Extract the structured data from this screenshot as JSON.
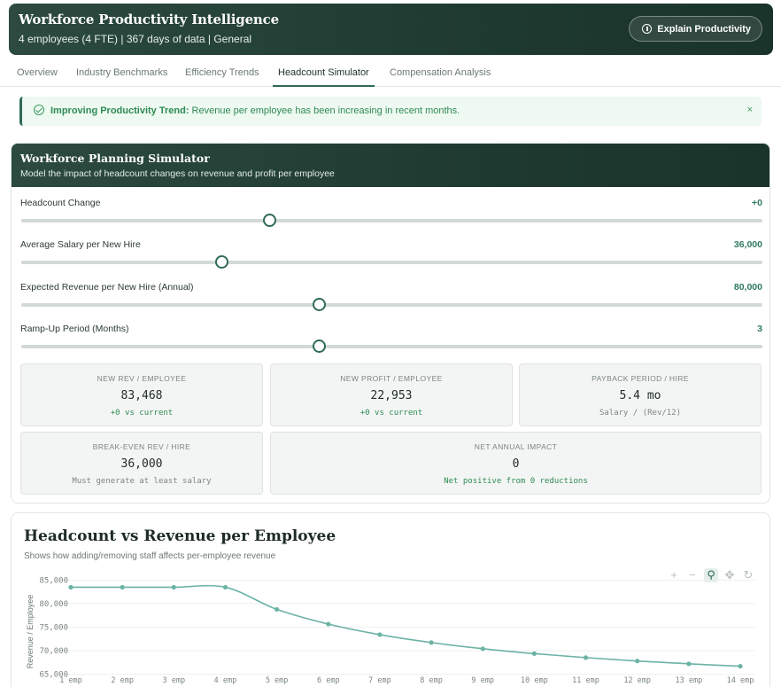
{
  "header": {
    "title": "Workforce Productivity Intelligence",
    "subtitle": "4 employees (4 FTE) | 367 days of data | General",
    "explain_label": "Explain Productivity",
    "explain_icon": "info-icon"
  },
  "tabs": [
    {
      "label": "Overview",
      "active": false
    },
    {
      "label": "Industry Benchmarks",
      "active": false
    },
    {
      "label": "Efficiency Trends",
      "active": false
    },
    {
      "label": "Headcount Simulator",
      "active": true
    },
    {
      "label": "Compensation Analysis",
      "active": false
    }
  ],
  "alert": {
    "title": "Improving Productivity Trend:",
    "message": "Revenue per employee has been increasing in recent months.",
    "close": "×",
    "icon": "check-circle-icon"
  },
  "simulator": {
    "title": "Workforce Planning Simulator",
    "subtitle": "Model the impact of headcount changes on revenue and profit per employee",
    "sliders": [
      {
        "label": "Headcount Change",
        "value": "+0",
        "fraction": 0.335
      },
      {
        "label": "Average Salary per New Hire",
        "value": "36,000",
        "fraction": 0.271
      },
      {
        "label": "Expected Revenue per New Hire (Annual)",
        "value": "80,000",
        "fraction": 0.402
      },
      {
        "label": "Ramp-Up Period (Months)",
        "value": "3",
        "fraction": 0.402
      }
    ],
    "cards": [
      {
        "label": "NEW REV / EMPLOYEE",
        "value": "83,468",
        "sub": "+0 vs current",
        "green": true
      },
      {
        "label": "NEW PROFIT / EMPLOYEE",
        "value": "22,953",
        "sub": "+0 vs current",
        "green": true
      },
      {
        "label": "PAYBACK PERIOD / HIRE",
        "value": "5.4 mo",
        "sub": "Salary / (Rev/12)",
        "green": false
      },
      {
        "label": "BREAK-EVEN REV / HIRE",
        "value": "36,000",
        "sub": "Must generate at least salary",
        "green": false
      },
      {
        "label": "NET ANNUAL IMPACT",
        "value": "0",
        "sub": "Net positive from 0 reductions",
        "green": true
      }
    ]
  },
  "chart": {
    "title": "Headcount vs Revenue per Employee",
    "subtitle": "Shows how adding/removing staff affects per-employee revenue",
    "modebar": [
      "plus-icon",
      "minus-icon",
      "zoom-icon",
      "pan-icon",
      "reset-icon"
    ],
    "line_color": "#6bb3a5"
  },
  "chart_data": {
    "type": "line",
    "categories": [
      "1 emp",
      "2 emp",
      "3 emp",
      "4 emp",
      "5 emp",
      "6 emp",
      "7 emp",
      "8 emp",
      "9 emp",
      "10 emp",
      "11 emp",
      "12 emp",
      "13 emp",
      "14 emp"
    ],
    "values": [
      83468,
      83468,
      83468,
      83468,
      78774,
      75645,
      73410,
      71735,
      70432,
      69389,
      68536,
      67825,
      67224,
      66708
    ],
    "xlabel": "",
    "ylabel": "Revenue / Employee",
    "ylim": [
      64000,
      86000
    ],
    "yticks": [
      "85,000",
      "80,000",
      "75,000",
      "70,000",
      "65,000"
    ],
    "ytick_values": [
      85000,
      80000,
      75000,
      70000,
      65000
    ],
    "grid": true
  }
}
